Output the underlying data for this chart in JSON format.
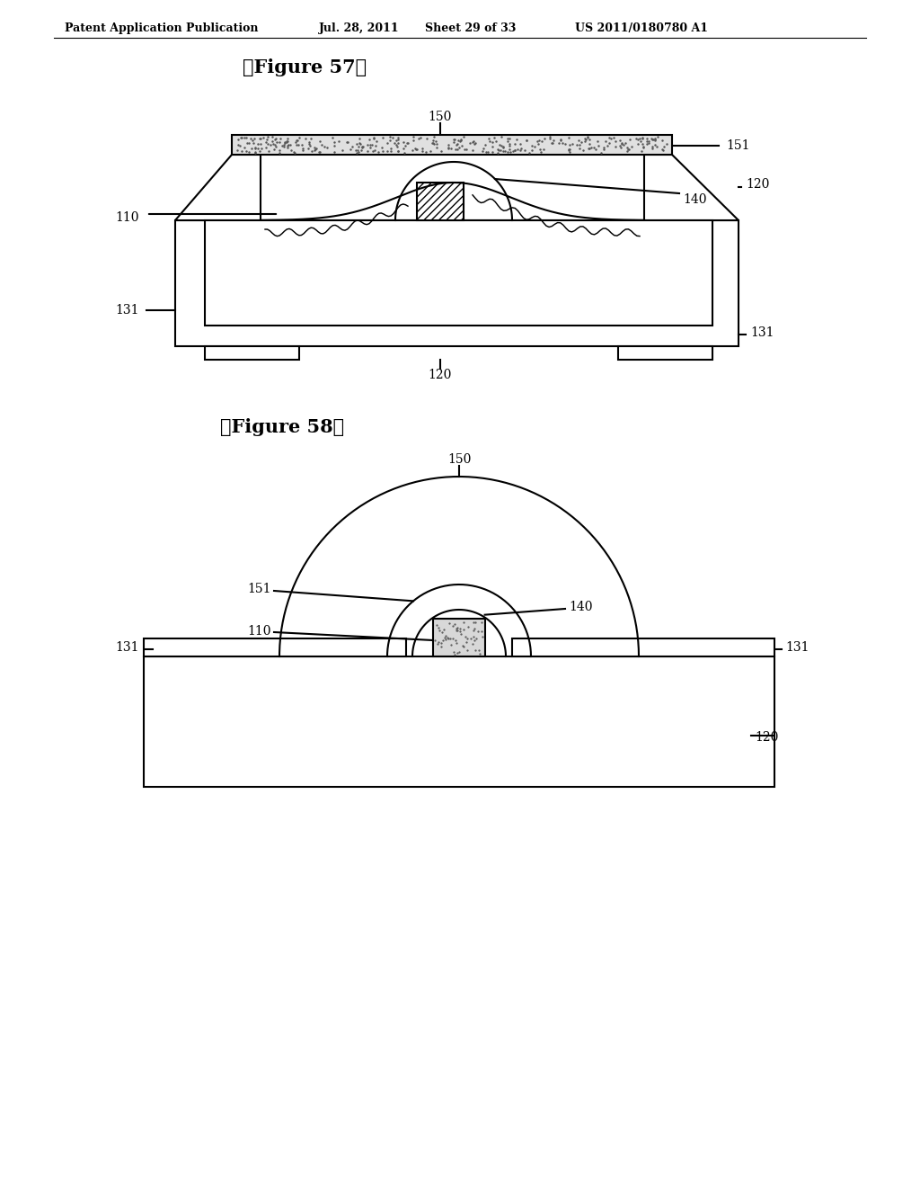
{
  "background_color": "#ffffff",
  "header_text": "Patent Application Publication",
  "header_date": "Jul. 28, 2011",
  "header_sheet": "Sheet 29 of 33",
  "header_patent": "US 2011/0180780 A1",
  "fig57_title": "【Figure 57】",
  "fig58_title": "【Figure 58】",
  "line_color": "#000000"
}
